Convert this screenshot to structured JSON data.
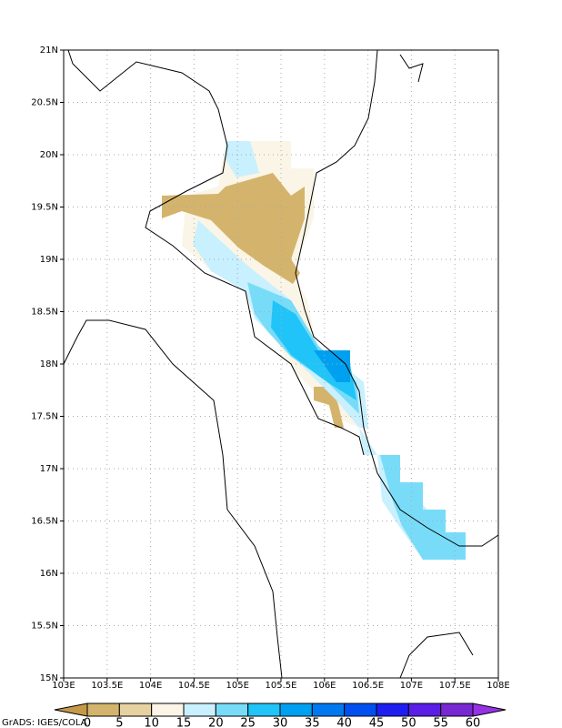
{
  "map": {
    "xlim": [
      103,
      108
    ],
    "ylim": [
      15,
      21
    ],
    "xticks": [
      {
        "value": 103,
        "label": "103E"
      },
      {
        "value": 103.5,
        "label": "103.5E"
      },
      {
        "value": 104,
        "label": "104E"
      },
      {
        "value": 104.5,
        "label": "104.5E"
      },
      {
        "value": 105,
        "label": "105E"
      },
      {
        "value": 105.5,
        "label": "105.5E"
      },
      {
        "value": 106,
        "label": "106E"
      },
      {
        "value": 106.5,
        "label": "106.5E"
      },
      {
        "value": 107,
        "label": "107E"
      },
      {
        "value": 107.5,
        "label": "107.5E"
      },
      {
        "value": 108,
        "label": "108E"
      }
    ],
    "yticks": [
      {
        "value": 15,
        "label": "15N"
      },
      {
        "value": 15.5,
        "label": "15.5N"
      },
      {
        "value": 16,
        "label": "16N"
      },
      {
        "value": 16.5,
        "label": "16.5N"
      },
      {
        "value": 17,
        "label": "17N"
      },
      {
        "value": 17.5,
        "label": "17.5N"
      },
      {
        "value": 18,
        "label": "18N"
      },
      {
        "value": 18.5,
        "label": "18.5N"
      },
      {
        "value": 19,
        "label": "19N"
      },
      {
        "value": 19.5,
        "label": "19.5N"
      },
      {
        "value": 20,
        "label": "20N"
      },
      {
        "value": 20.5,
        "label": "20.5N"
      },
      {
        "value": 21,
        "label": "21N"
      }
    ],
    "grid": true
  },
  "colorbar": {
    "levels": [
      0,
      5,
      10,
      15,
      20,
      25,
      30,
      35,
      40,
      45,
      50,
      55,
      60
    ],
    "colors": [
      "#c49a48",
      "#d4b46c",
      "#e6d2a0",
      "#faf5e6",
      "#c8f0ff",
      "#78dcf8",
      "#20c4f8",
      "#00a0f0",
      "#0078f0",
      "#0050f0",
      "#1e1ef0",
      "#5a1ee6",
      "#7828d2",
      "#9632e6"
    ]
  },
  "credit": "GrADS: IGES/COLA"
}
